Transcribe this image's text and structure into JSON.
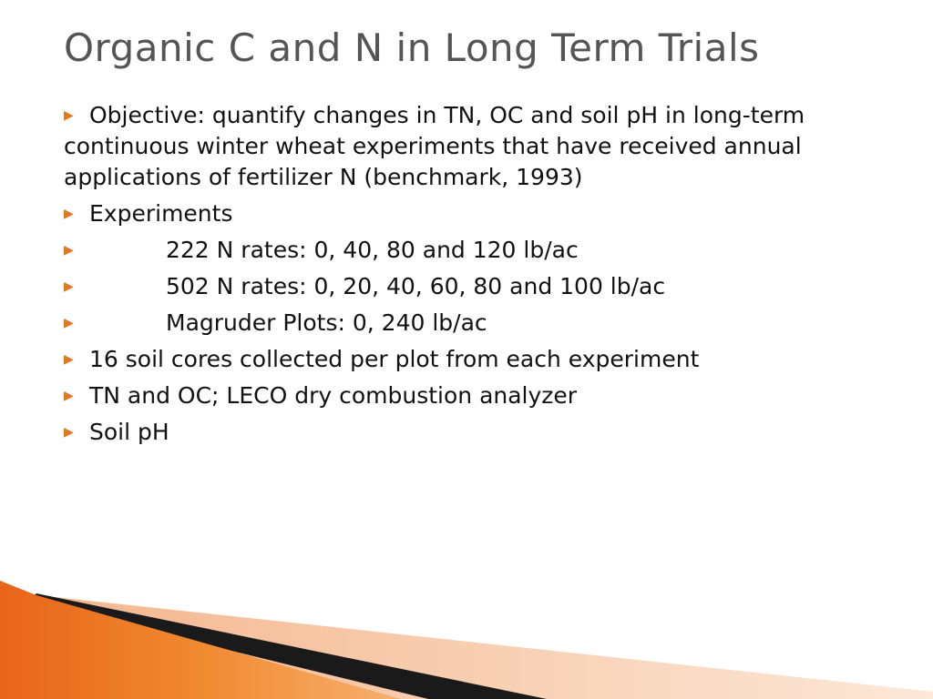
{
  "slide": {
    "title": "Organic C and N in Long Term Trials",
    "bullets": [
      {
        "text": "Objective: quantify changes in TN, OC and soil pH in long-term continuous winter wheat experiments that have received annual applications of fertilizer N (benchmark, 1993)",
        "indent": false
      },
      {
        "text": "Experiments",
        "indent": false
      },
      {
        "text": "222 N rates: 0, 40, 80 and 120 lb/ac",
        "indent": true
      },
      {
        "text": "502 N rates: 0, 20, 40, 60, 80 and 100 lb/ac",
        "indent": true
      },
      {
        "text": "Magruder Plots: 0, 240 lb/ac",
        "indent": true
      },
      {
        "text": "16 soil cores collected per plot from each experiment",
        "indent": false
      },
      {
        "text": "TN and OC; LECO dry combustion analyzer",
        "indent": false
      },
      {
        "text": "Soil pH",
        "indent": false
      }
    ]
  },
  "theme": {
    "accent": "#e07820",
    "title_color": "#555555",
    "text_color": "#111111"
  },
  "icons": {
    "bullet": "triangle-right-icon"
  }
}
